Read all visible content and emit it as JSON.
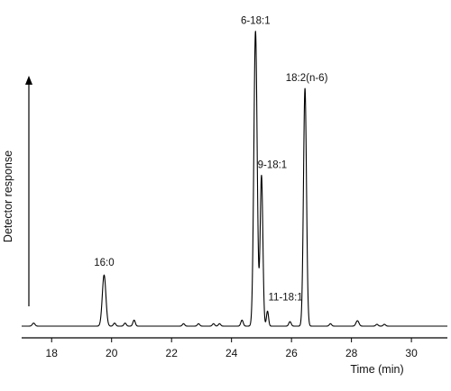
{
  "chart_data": {
    "type": "line",
    "xlabel": "Time (min)",
    "ylabel": "Detector response",
    "xlim": [
      17.0,
      31.2
    ],
    "ylim": [
      0,
      100
    ],
    "x_ticks": [
      18,
      20,
      22,
      24,
      26,
      28,
      30
    ],
    "y_ticks": [],
    "grid": false,
    "line_color": "#000000",
    "baseline": 2.0,
    "peaks": [
      {
        "label": "",
        "rt": 17.4,
        "height": 1.0,
        "sigma": 0.045
      },
      {
        "label": "16:0",
        "rt": 19.75,
        "height": 17.0,
        "sigma": 0.06
      },
      {
        "label": "",
        "rt": 20.1,
        "height": 1.0,
        "sigma": 0.04
      },
      {
        "label": "",
        "rt": 20.45,
        "height": 1.0,
        "sigma": 0.04
      },
      {
        "label": "",
        "rt": 20.75,
        "height": 2.0,
        "sigma": 0.04
      },
      {
        "label": "",
        "rt": 22.4,
        "height": 0.8,
        "sigma": 0.04
      },
      {
        "label": "",
        "rt": 22.9,
        "height": 0.8,
        "sigma": 0.04
      },
      {
        "label": "",
        "rt": 23.4,
        "height": 0.8,
        "sigma": 0.04
      },
      {
        "label": "",
        "rt": 23.6,
        "height": 0.8,
        "sigma": 0.04
      },
      {
        "label": "",
        "rt": 24.35,
        "height": 2.0,
        "sigma": 0.04
      },
      {
        "label": "6-18:1",
        "rt": 24.8,
        "height": 98.0,
        "sigma": 0.055
      },
      {
        "label": "9-18:1",
        "rt": 25.0,
        "height": 50.0,
        "sigma": 0.045
      },
      {
        "label": "11-18:1",
        "rt": 25.2,
        "height": 5.0,
        "sigma": 0.035
      },
      {
        "label": "",
        "rt": 25.95,
        "height": 1.5,
        "sigma": 0.04
      },
      {
        "label": "18:2(n-6)",
        "rt": 26.45,
        "height": 79.0,
        "sigma": 0.05
      },
      {
        "label": "",
        "rt": 27.3,
        "height": 0.8,
        "sigma": 0.04
      },
      {
        "label": "",
        "rt": 28.2,
        "height": 1.8,
        "sigma": 0.05
      },
      {
        "label": "",
        "rt": 28.85,
        "height": 0.6,
        "sigma": 0.04
      },
      {
        "label": "",
        "rt": 29.1,
        "height": 0.6,
        "sigma": 0.04
      }
    ]
  }
}
